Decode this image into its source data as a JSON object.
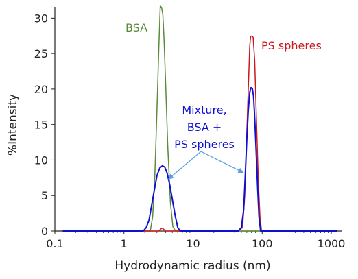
{
  "chart_data": {
    "type": "line",
    "xlabel": "Hydrodynamic radius (nm)",
    "ylabel": "%Intensity",
    "xscale": "log",
    "xlim": [
      0.1,
      1200
    ],
    "ylim": [
      0,
      31
    ],
    "xticks": [
      {
        "value": 0.1,
        "label": "0.1"
      },
      {
        "value": 1,
        "label": "1"
      },
      {
        "value": 10,
        "label": "10"
      },
      {
        "value": 100,
        "label": "100"
      },
      {
        "value": 1000,
        "label": "1000"
      }
    ],
    "yticks": [
      {
        "value": 0,
        "label": "0"
      },
      {
        "value": 5,
        "label": "5"
      },
      {
        "value": 10,
        "label": "10"
      },
      {
        "value": 15,
        "label": "15"
      },
      {
        "value": 20,
        "label": "20"
      },
      {
        "value": 25,
        "label": "25"
      },
      {
        "value": 30,
        "label": "30"
      }
    ],
    "grid": false,
    "series": [
      {
        "name": "BSA",
        "color": "#5a8a3a",
        "x": [
          0.13,
          2.4,
          2.6,
          2.8,
          3.0,
          3.2,
          3.35,
          3.5,
          3.65,
          3.8,
          4.0,
          4.3,
          4.7,
          5.1,
          5.6,
          6.0,
          20,
          1200
        ],
        "y": [
          0,
          0,
          2,
          8,
          17,
          26,
          31.7,
          31.5,
          30.5,
          27,
          21,
          12,
          4,
          0.6,
          0,
          0,
          0,
          0
        ]
      },
      {
        "name": "PS spheres",
        "color": "#c8191e",
        "x": [
          0.13,
          3.2,
          3.4,
          3.6,
          3.8,
          4.0,
          45,
          52,
          56,
          60,
          64,
          66,
          68,
          71,
          74,
          78,
          83,
          88,
          93,
          98,
          1200
        ],
        "y": [
          0,
          0,
          0.3,
          0.4,
          0.2,
          0,
          0,
          0.5,
          5,
          14,
          22,
          26,
          27.4,
          27.5,
          27.3,
          24,
          15,
          7,
          2,
          0,
          0
        ]
      },
      {
        "name": "Mixture, BSA + PS spheres",
        "color": "#1010d0",
        "x": [
          0.13,
          1.9,
          2.1,
          2.3,
          2.5,
          2.8,
          3.0,
          3.3,
          3.6,
          3.9,
          4.2,
          4.6,
          5.0,
          5.5,
          6.0,
          6.5,
          45,
          50,
          54,
          57,
          60,
          63,
          66,
          69,
          72,
          75,
          78,
          82,
          86,
          90,
          95,
          1200
        ],
        "y": [
          0,
          0,
          0.5,
          1.5,
          3.5,
          6.2,
          7.8,
          8.9,
          9.2,
          9.0,
          8.2,
          6.5,
          4.5,
          2.2,
          0.5,
          0,
          0,
          0.5,
          3,
          8,
          13,
          17,
          19.5,
          20.2,
          20.1,
          19,
          16,
          11,
          6,
          2,
          0,
          0
        ]
      }
    ],
    "annotations": {
      "bsa_label": "BSA",
      "ps_label": "PS spheres",
      "mixture_label_lines": [
        "Mixture,",
        "BSA +",
        "PS spheres"
      ],
      "arrow_color": "#5aa0e0"
    }
  }
}
